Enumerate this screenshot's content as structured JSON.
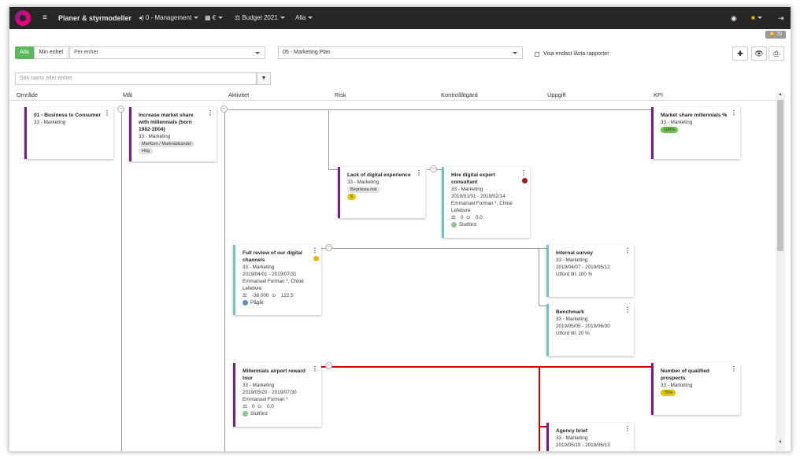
{
  "topbar": {
    "menu_icon": "hamburger-icon",
    "title": "Planer & styrmodeller",
    "management": "0 - Management",
    "currency": "€",
    "budget": "Budget 2021",
    "all": "Alla",
    "notifications": "70"
  },
  "filters": {
    "alla": "Alla",
    "min_enhet": "Min enhet",
    "per_enhet": "Per enhet",
    "plan": "05 - Marketing Plan",
    "locked_label": "Visa endast låsta rapporter",
    "search_placeholder": "Sök namn eller enhet"
  },
  "columns": [
    "Område",
    "Mål",
    "Aktivitet",
    "Risk",
    "Kontrollåtgärd",
    "Uppgift",
    "KPI"
  ],
  "cards": {
    "omrade": {
      "title": "01 - Business to Consumer",
      "unit": "33 - Marketing",
      "color": "#7b1a8a"
    },
    "mal": {
      "title": "Increase market share with millennials (born 1982-2004)",
      "unit": "33 - Marketing",
      "tag1": "MarKom / Marknadsandel",
      "tag2": "Hög",
      "color": "#7b1a8a"
    },
    "risk": {
      "title": "Lack of digital experience",
      "unit": "33 - Marketing",
      "tag": "Begränsa risk",
      "badge": "6",
      "color": "#7b1a8a"
    },
    "kontroll": {
      "title": "Hire digital expert consultant",
      "unit": "33 - Marketing",
      "dates": "2019/01/01 - 2019/02/14",
      "people": "Emmanuel Forman *, Chloé Lefebvre",
      "budget": "0",
      "hours": "0.0",
      "status": "Slutförd",
      "color": "#6cc7c7"
    },
    "akt1": {
      "title": "Full review of our digital channels",
      "unit": "33 - Marketing",
      "dates": "2019/04/01 - 2019/07/31",
      "people": "Emmanuel Forman *, Chloé Lefebvre",
      "budget": "-38 000",
      "hours": "122,5",
      "status": "Pågår",
      "color": "#6cc7c7"
    },
    "upp1": {
      "title": "Internal survey",
      "unit": "33 - Marketing",
      "dates": "2019/04/07 - 2019/05/12",
      "done": "Utford till: 100 %",
      "color": "#6cc7c7"
    },
    "upp2": {
      "title": "Benchmark",
      "unit": "33 - Marketing",
      "dates": "2019/05/05 - 2019/06/30",
      "done": "Utford till: 20 %",
      "color": "#6cc7c7"
    },
    "akt2": {
      "title": "Millennials airport reward tour",
      "unit": "33 - Marketing",
      "dates": "2019/05/20 - 2019/07/30",
      "people": "Emmanuel Forman *",
      "budget": "0",
      "hours": "0.0",
      "status": "Slutförd",
      "color": "#7b1a8a"
    },
    "upp3": {
      "title": "Agency brief",
      "unit": "33 - Marketing",
      "dates": "2019/05/19 - 2019/06/13",
      "color": "#7b1a8a"
    },
    "kpi1": {
      "title": "Market share millennials %",
      "unit": "33 - Marketing",
      "badge": "100%",
      "color": "#7b1a8a"
    },
    "kpi2": {
      "title": "Number of qualified prospects",
      "unit": "33 - Marketing",
      "badge": "75%",
      "color": "#7b1a8a"
    }
  },
  "colors": {
    "connector_red": "#cc0000",
    "status_green": "#8bc78b",
    "status_blue": "#5b8fc4",
    "badge_green": "#6ec34e",
    "badge_yellow": "#e5c600"
  }
}
